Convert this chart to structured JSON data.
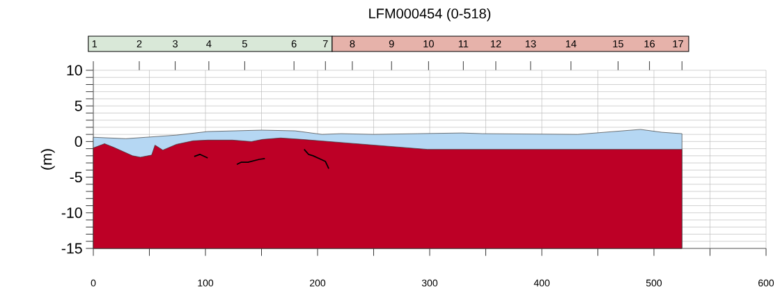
{
  "chart_data": [
    {
      "type": "bar",
      "orientation": "horizontal",
      "title": "LFM000454 (0-518)",
      "categories": [
        null
      ],
      "xlim": [
        0,
        600
      ],
      "tick_labels": false,
      "series": [
        {
          "color": "#d9e8d8",
          "base": [
            -4.5
          ],
          "values": [
            217.5
          ]
        },
        {
          "color": "#e6b2aa",
          "base": [
            213
          ],
          "values": [
            318
          ]
        }
      ],
      "annotations": [
        "1",
        "2",
        "3",
        "4",
        "5",
        "6",
        "7",
        "8",
        "9",
        "10",
        "11",
        "12",
        "13",
        "14",
        "15",
        "16",
        "17"
      ]
    },
    {
      "type": "area",
      "ylabel": "(m)",
      "xlim": [
        0,
        600
      ],
      "ylim": [
        -15,
        10
      ],
      "xticks": [
        0,
        {
          "value": 50,
          "label": null
        },
        100,
        {
          "value": 150,
          "label": null
        },
        200,
        {
          "value": 250,
          "label": null
        },
        300,
        {
          "value": 350,
          "label": null
        },
        400,
        {
          "value": 450,
          "label": null
        },
        500,
        {
          "value": 550,
          "label": null
        },
        600
      ],
      "yticks": [
        -15,
        {
          "value": -14,
          "label": null
        },
        {
          "value": -13,
          "label": null
        },
        {
          "value": -12,
          "label": null
        },
        {
          "value": -11,
          "label": null
        },
        -10,
        {
          "value": -9,
          "label": null
        },
        {
          "value": -8,
          "label": null
        },
        {
          "value": -7,
          "label": null
        },
        {
          "value": -6,
          "label": null
        },
        -5,
        {
          "value": -4,
          "label": null
        },
        {
          "value": -3,
          "label": null
        },
        {
          "value": -2,
          "label": null
        },
        {
          "value": -1,
          "label": null
        },
        0,
        {
          "value": 1,
          "label": null
        },
        {
          "value": 2,
          "label": null
        },
        {
          "value": 3,
          "label": null
        },
        {
          "value": 4,
          "label": null
        },
        5,
        {
          "value": 6,
          "label": null
        },
        {
          "value": 7,
          "label": null
        },
        {
          "value": 8,
          "label": null
        },
        {
          "value": 9,
          "label": null
        },
        10
      ],
      "grid": true,
      "series": [
        {
          "color": "#b5d7f3",
          "x": [
            0,
            0,
            29,
            47,
            74,
            102,
            150,
            180,
            204,
            221,
            250,
            289,
            329,
            347,
            432,
            488,
            507,
            525,
            525
          ],
          "values": [
            -15,
            0.6,
            0.4,
            0.6,
            0.9,
            1.4,
            1.6,
            1.5,
            1.0,
            1.1,
            1.0,
            1.1,
            1.2,
            1.1,
            1.0,
            1.7,
            1.3,
            1.1,
            -15
          ]
        },
        {
          "color": "#bd0026",
          "x": [
            0,
            0,
            10,
            18,
            35,
            42,
            52,
            55,
            62,
            74,
            89,
            102,
            124,
            141,
            151,
            167,
            186,
            298,
            525,
            525
          ],
          "values": [
            -15,
            -0.9,
            -0.3,
            -0.8,
            -2.0,
            -2.2,
            -1.9,
            -0.5,
            -1.2,
            -0.4,
            0.1,
            0.2,
            0.2,
            0.0,
            0.3,
            0.5,
            0.3,
            -1.1,
            -1.1,
            -15
          ]
        },
        {
          "type": "line",
          "color": "#000000",
          "x": [
            90,
            95,
            102
          ],
          "values": [
            -2.1,
            -1.8,
            -2.3
          ]
        },
        {
          "type": "line",
          "color": "#000000",
          "x": [
            128,
            132,
            138,
            148,
            153
          ],
          "values": [
            -3.2,
            -2.9,
            -2.9,
            -2.5,
            -2.4
          ]
        },
        {
          "type": "line",
          "color": "#000000",
          "x": [
            188,
            192,
            196,
            203,
            207,
            210
          ],
          "values": [
            -1.1,
            -1.8,
            -2.0,
            -2.5,
            -2.8,
            -3.8
          ]
        }
      ]
    }
  ]
}
